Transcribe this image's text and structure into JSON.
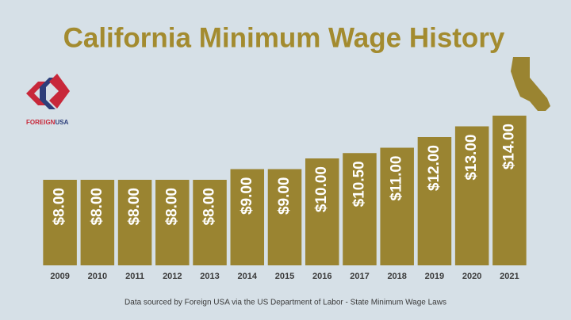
{
  "chart_data": {
    "type": "bar",
    "title": "California Minimum Wage History",
    "categories": [
      "2009",
      "2010",
      "2011",
      "2012",
      "2013",
      "2014",
      "2015",
      "2016",
      "2017",
      "2018",
      "2019",
      "2020",
      "2021"
    ],
    "values": [
      8,
      8,
      8,
      8,
      8,
      9,
      9,
      10,
      10.5,
      11,
      12,
      13,
      14
    ],
    "value_labels": [
      "$8.00",
      "$8.00",
      "$8.00",
      "$8.00",
      "$8.00",
      "$9.00",
      "$9.00",
      "$10.00",
      "$10.50",
      "$11.00",
      "$12.00",
      "$13.00",
      "$14.00"
    ],
    "color": "#9a8431",
    "ylim": [
      0,
      14
    ],
    "source": "Data sourced by Foreign USA via the US Department of Labor - State Minimum Wage Laws",
    "logo": {
      "part1": "FOREIGN",
      "part2": "USA"
    }
  }
}
